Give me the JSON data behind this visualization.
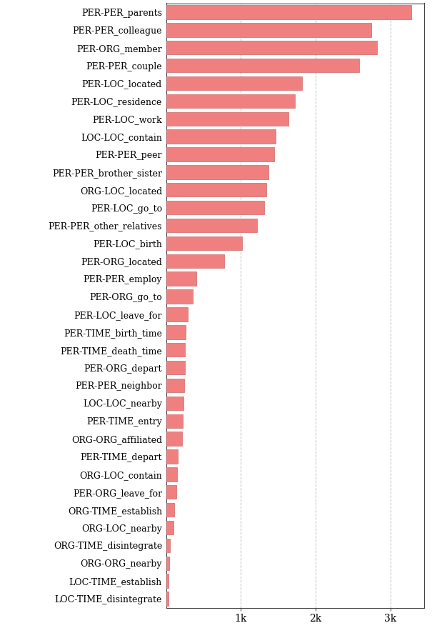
{
  "categories": [
    "PER-PER_parents",
    "PER-PER_colleague",
    "PER-ORG_member",
    "PER-PER_couple",
    "PER-LOC_located",
    "PER-LOC_residence",
    "PER-LOC_work",
    "LOC-LOC_contain",
    "PER-PER_peer",
    "PER-PER_brother_sister",
    "ORG-LOC_located",
    "PER-LOC_go_to",
    "PER-PER_other_relatives",
    "PER-LOC_birth",
    "PER-ORG_located",
    "PER-PER_employ",
    "PER-ORG_go_to",
    "PER-LOC_leave_for",
    "PER-TIME_birth_time",
    "PER-TIME_death_time",
    "PER-ORG_depart",
    "PER-PER_neighbor",
    "LOC-LOC_nearby",
    "PER-TIME_entry",
    "ORG-ORG_affiliated",
    "PER-TIME_depart",
    "ORG-LOC_contain",
    "PER-ORG_leave_for",
    "ORG-TIME_establish",
    "ORG-LOC_nearby",
    "ORG-TIME_disintegrate",
    "ORG-ORG_nearby",
    "LOC-TIME_establish",
    "LOC-TIME_disintegrate"
  ],
  "values": [
    3280,
    2750,
    2820,
    2580,
    1820,
    1720,
    1640,
    1470,
    1450,
    1370,
    1340,
    1310,
    1220,
    1020,
    780,
    410,
    360,
    290,
    265,
    255,
    250,
    245,
    235,
    225,
    215,
    160,
    150,
    140,
    110,
    95,
    55,
    45,
    35,
    30
  ],
  "bar_color": "#f08080",
  "bar_edge_color": "#cc6666",
  "background_color": "#ffffff",
  "grid_color": "#bbbbbb",
  "xlim": [
    0,
    3450
  ],
  "xticks": [
    1000,
    2000,
    3000
  ],
  "xticklabels": [
    "1k",
    "2k",
    "3k"
  ],
  "bar_height": 0.78,
  "fontsize_ytick": 9,
  "fontsize_xtick": 10
}
